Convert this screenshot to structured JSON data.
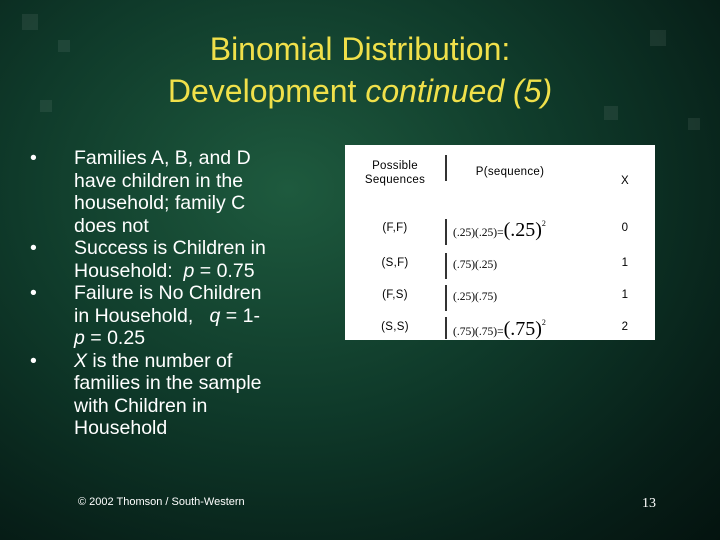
{
  "title": {
    "line1": "Binomial Distribution:",
    "line2_plain": "Development ",
    "line2_italic": "continued (5)"
  },
  "bullets": {
    "marker": "•",
    "b1_lines": [
      "Families A, B, and D",
      "have children in the",
      "household; family C",
      "does not"
    ],
    "b2_lines": [
      "Success is Children in",
      "Household:"
    ],
    "b2_var": "p",
    "b2_val": " = 0.75",
    "b3_lines": [
      "Failure is No Children",
      "in Household,"
    ],
    "b3_var": "q",
    "b3_eq": " = 1-",
    "b3_var2": "p",
    "b3_val2": " = 0.25",
    "b4_var": "X",
    "b4_text": " is the number of",
    "b4_lines": [
      "families in the sample",
      "with Children in",
      "Household"
    ]
  },
  "table": {
    "headers": {
      "sequences_line1": "Possible",
      "sequences_line2": "Sequences",
      "probability": "P(sequence)",
      "x": "X"
    },
    "rows": [
      {
        "sequence": "(F,F)",
        "prob_product": "(.25)(.25)",
        "prob_eq": "=",
        "prob_power_base": "(.25)",
        "prob_power_exp": "2",
        "x": "0"
      },
      {
        "sequence": "(S,F)",
        "prob_product": "(.75)(.25)",
        "x": "1"
      },
      {
        "sequence": "(F,S)",
        "prob_product": "(.25)(.75)",
        "x": "1"
      },
      {
        "sequence": "(S,S)",
        "prob_product": "(.75)(.75)",
        "prob_eq": "=",
        "prob_power_base": "(.75)",
        "prob_power_exp": "2",
        "x": "2"
      }
    ]
  },
  "footer": {
    "copyright": "© 2002 Thomson / South-Western",
    "page_number": "13"
  }
}
